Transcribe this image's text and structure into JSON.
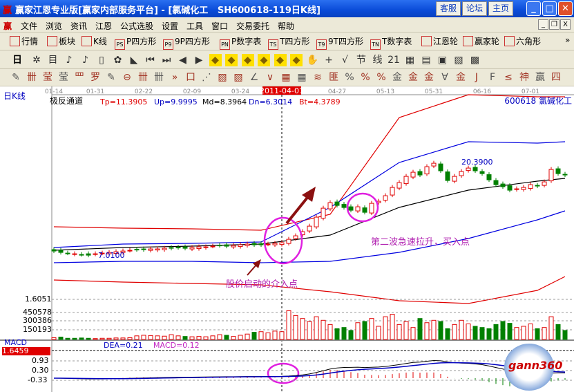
{
  "window": {
    "title": "赢家江恩专业版[赢家内部服务平台] - [氯碱化工   SH600618-119日K线]",
    "logo": "赢",
    "buttons": [
      "客服",
      "论坛",
      "主页"
    ]
  },
  "menu": {
    "items": [
      "文件",
      "浏览",
      "资讯",
      "江恩",
      "公式选股",
      "设置",
      "工具",
      "窗口",
      "交易委托",
      "帮助"
    ]
  },
  "toolbar1": {
    "items": [
      {
        "label": "行情",
        "icon": "grid-icon"
      },
      {
        "label": "板块",
        "icon": "blocks-icon"
      },
      {
        "label": "K线",
        "icon": "kline-icon"
      },
      {
        "label": "P四方形",
        "icon": "PS"
      },
      {
        "label": "9P四方形",
        "icon": "P9"
      },
      {
        "label": "P数字表",
        "icon": "PN"
      },
      {
        "label": "T四方形",
        "icon": "TS"
      },
      {
        "label": "9T四方形",
        "icon": "T9"
      },
      {
        "label": "T数字表",
        "icon": "TN"
      },
      {
        "label": "江恩轮",
        "icon": "wheel-icon"
      },
      {
        "label": "赢家轮",
        "icon": "big-wheel-icon"
      },
      {
        "label": "六角形",
        "icon": "hexagon-icon"
      }
    ],
    "more": "»"
  },
  "toolbar2": {
    "period": "日",
    "glyphs": [
      "✲",
      "目",
      "♪",
      "♪",
      "▯",
      "✿",
      "◣",
      "⏮",
      "⏭",
      "◀",
      "▶",
      "◆",
      "◆",
      "◆",
      "◆",
      "◆",
      "◆",
      "✋",
      "+",
      "√",
      "节",
      "线",
      "21",
      "▦",
      "▤",
      "▣",
      "▧",
      "▩"
    ]
  },
  "toolbar3": {
    "glyphs": [
      "✎",
      "卌",
      "莹",
      "莹",
      "罒",
      "罗",
      "✎",
      "⊖",
      "卌",
      "卌",
      "»",
      "口",
      "⋰",
      "▨",
      "▨",
      "∠",
      "∨",
      "▦",
      "▦",
      "≋",
      "匪",
      "%",
      "%",
      "%",
      "金",
      "金",
      "金",
      "∀",
      "金",
      "J",
      "F",
      "≤",
      "神",
      "赢",
      "四"
    ]
  },
  "chart": {
    "period_label": "日K线",
    "indicator_name": "极反通道",
    "params": [
      {
        "text": "Tp=11.3905",
        "color": "#e00000"
      },
      {
        "text": "Up=9.9995",
        "color": "#0000c0"
      },
      {
        "text": "Md=8.3964",
        "color": "#000000"
      },
      {
        "text": "Dn=6.3014",
        "color": "#0000c0"
      },
      {
        "text": "Bt=4.3789",
        "color": "#e00000"
      }
    ],
    "stock": "600618  氯碱化工",
    "dates": [
      {
        "label": "01-14",
        "bar": 0
      },
      {
        "label": "01-31",
        "bar": 6
      },
      {
        "label": "02-22",
        "bar": 13
      },
      {
        "label": "02-09",
        "bar": 20
      },
      {
        "label": "03-24",
        "bar": 27
      },
      {
        "label": "2011-04-07",
        "bar": 33,
        "selected": true
      },
      {
        "label": "04-27",
        "bar": 41
      },
      {
        "label": "05-13",
        "bar": 48
      },
      {
        "label": "05-31",
        "bar": 55
      },
      {
        "label": "06-16",
        "bar": 62
      },
      {
        "label": "07-01",
        "bar": 69
      }
    ],
    "high_label": "20.3900",
    "low_label": "7.0100",
    "annotations": [
      "第二波急速拉升，买入点",
      "股价启动的介入点"
    ],
    "volume_axis": [
      "1.6051",
      "450578",
      "300386",
      "150193"
    ],
    "macd_label": "MACD",
    "macd_value": "1.6459",
    "dea": "DEA=0.21",
    "macd": "MACD=0.12",
    "macd_axis": [
      "0.93",
      "0.30",
      "-0.33"
    ],
    "watermark": "gann360"
  },
  "chart_data": {
    "type": "candlestick",
    "closes": [
      7.6,
      7.4,
      7.3,
      7.2,
      7.1,
      7.0,
      7.2,
      7.3,
      7.4,
      7.5,
      7.6,
      7.7,
      7.8,
      7.8,
      7.9,
      7.9,
      8.0,
      8.0,
      8.1,
      8.0,
      8.1,
      8.2,
      8.2,
      8.3,
      8.4,
      8.3,
      8.4,
      8.5,
      8.6,
      8.5,
      8.5,
      8.6,
      8.7,
      8.8,
      9.3,
      9.8,
      10.4,
      11.2,
      12.5,
      13.8,
      14.6,
      14.2,
      13.9,
      13.5,
      14.0,
      13.2,
      14.5,
      14.8,
      15.6,
      16.8,
      17.5,
      18.4,
      19.0,
      18.6,
      19.8,
      20.3,
      19.2,
      17.8,
      18.4,
      19.1,
      19.6,
      19.2,
      18.8,
      17.9,
      17.2,
      16.9,
      16.4,
      16.6,
      16.8,
      17.2,
      17.0,
      17.6,
      19.4,
      18.8,
      18.6
    ],
    "volumes": [
      30,
      40,
      20,
      20,
      25,
      20,
      15,
      20,
      20,
      25,
      25,
      30,
      60,
      70,
      65,
      60,
      55,
      80,
      60,
      50,
      45,
      50,
      45,
      60,
      80,
      70,
      50,
      70,
      90,
      120,
      130,
      110,
      140,
      130,
      480,
      400,
      350,
      300,
      380,
      320,
      250,
      180,
      200,
      150,
      280,
      300,
      350,
      220,
      380,
      420,
      250,
      300,
      200,
      350,
      280,
      320,
      300,
      180,
      250,
      320,
      260,
      220,
      200,
      180,
      250,
      300,
      270,
      200,
      220,
      260,
      180,
      200,
      380,
      250,
      150
    ],
    "bands": {
      "bars": [
        0,
        10,
        20,
        30,
        40,
        50,
        60,
        70,
        74
      ],
      "tp": [
        11.11,
        10.91,
        10.81,
        10.61,
        12.91,
        26.91,
        30.21,
        29.91,
        29.91
      ],
      "up": [
        8.11,
        8.61,
        8.71,
        8.91,
        13.91,
        20.41,
        23.41,
        23.21,
        23.41
      ],
      "md": [
        7.71,
        8.11,
        8.31,
        8.61,
        9.91,
        13.91,
        16.41,
        17.71,
        18.11
      ],
      "dn": [
        5.91,
        6.11,
        6.11,
        5.91,
        6.11,
        7.41,
        9.41,
        12.11,
        13.41
      ],
      "bt": [
        3.41,
        3.11,
        2.91,
        2.71,
        1.71,
        0.41,
        0.01,
        1.91,
        3.91
      ]
    },
    "colors": {
      "up": "#e00000",
      "down": "#008000",
      "tp": "#e00000",
      "up_band": "#0000e0",
      "md": "#000000",
      "dn": "#0000e0",
      "bt": "#e00000",
      "highlight": "#e020e0",
      "arrow": "#8b1010"
    }
  }
}
